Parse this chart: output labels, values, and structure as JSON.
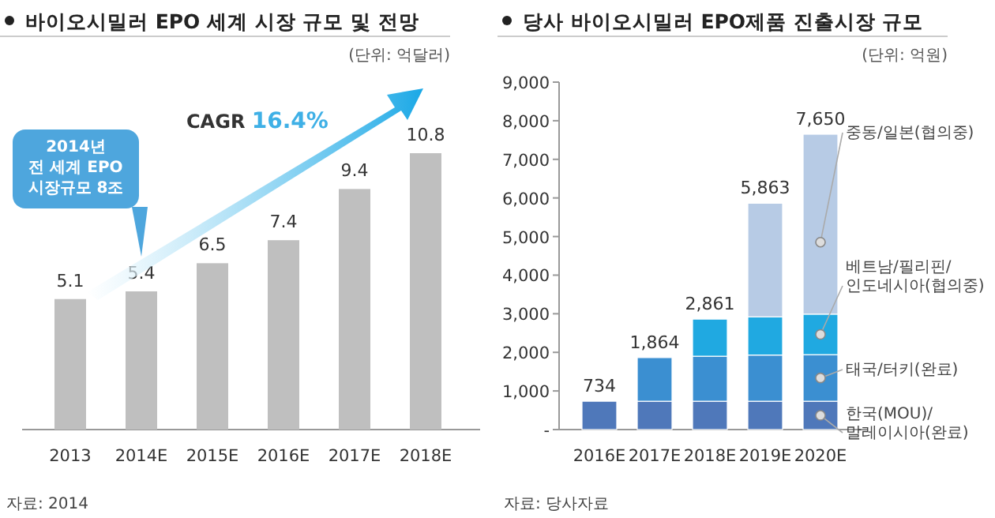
{
  "chart_data": [
    {
      "type": "bar",
      "title": "바이오시밀러 EPO 세계 시장 규모 및 전망",
      "categories": [
        "2013",
        "2014E",
        "2015E",
        "2016E",
        "2017E",
        "2018E"
      ],
      "values": [
        5.1,
        5.4,
        6.5,
        7.4,
        9.4,
        10.8
      ],
      "color": "#bfbfbf",
      "data_labels": true,
      "annotations": [
        "(단위: 억달러)",
        "CAGR 16.4%",
        "2014년\n전 세계 EPO\n시장규모 8조",
        "자료: 2014"
      ]
    },
    {
      "type": "bar",
      "title": "당사 바이오시밀러 EPO제품 진출시장 규모",
      "categories": [
        "2016E",
        "2017E",
        "2018E",
        "2019E",
        "2020E"
      ],
      "stacked": true,
      "series": [
        {
          "name": "한국(MOU)/\n말레이시아(완료)",
          "color": "#4f78ba",
          "values": [
            734,
            734,
            734,
            734,
            734
          ]
        },
        {
          "name": "태국/터키(완료)",
          "color": "#3b8fd1",
          "values": [
            null,
            1130,
            1166,
            1196,
            1206
          ]
        },
        {
          "name": "베트남/필리핀/\n인도네시아(협의중)",
          "color": "#20a9e1",
          "values": [
            null,
            null,
            961,
            990,
            1050
          ]
        },
        {
          "name": "중동/일본(협의중)",
          "color": "#b7cbe5",
          "values": [
            null,
            null,
            null,
            2943,
            4660
          ]
        }
      ],
      "totals": [
        "734",
        "1,864",
        "2,861",
        "5,863",
        "7,650"
      ],
      "ylim": [
        0,
        9000
      ],
      "yticks": [
        {
          "value": 0,
          "label": "-"
        },
        {
          "value": 1000,
          "label": "1,000"
        },
        {
          "value": 2000,
          "label": "2,000"
        },
        {
          "value": 3000,
          "label": "3,000"
        },
        {
          "value": 4000,
          "label": "4,000"
        },
        {
          "value": 5000,
          "label": "5,000"
        },
        {
          "value": 6000,
          "label": "6,000"
        },
        {
          "value": 7000,
          "label": "7,000"
        },
        {
          "value": 8000,
          "label": "8,000"
        },
        {
          "value": 9000,
          "label": "9,000"
        }
      ],
      "annotations": [
        "(단위: 억원)",
        "자료: 당사자료"
      ]
    }
  ]
}
